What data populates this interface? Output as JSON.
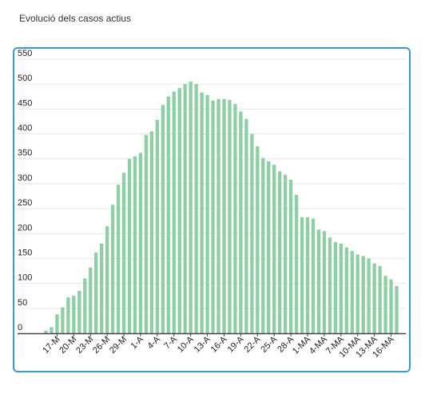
{
  "title": "Evolució dels casos actius",
  "colors": {
    "bar": "#8fcfa5",
    "grid": "#e6e6e6",
    "axis": "#444444",
    "frame": "#3d96d8"
  },
  "chart_data": {
    "type": "bar",
    "title": "Evolució dels casos actius",
    "xlabel": "",
    "ylabel": "",
    "ylim": [
      0,
      550
    ],
    "y_ticks": [
      0,
      50,
      100,
      150,
      200,
      250,
      300,
      350,
      400,
      450,
      500,
      550
    ],
    "grid": true,
    "legend": "none",
    "x_tick_labels": [
      "17-M",
      "20-M",
      "23-M",
      "26-M",
      "29-M",
      "1-A",
      "4-A",
      "7-A",
      "10-A",
      "13-A",
      "16-A",
      "19-A",
      "22-A",
      "25-A",
      "28-A",
      "1-MA",
      "4-MA",
      "7-MA",
      "10-MA",
      "13-MA",
      "16-MA"
    ],
    "x_tick_every": 3,
    "x_tick_first_index": 2,
    "values": [
      5,
      12,
      38,
      52,
      72,
      75,
      85,
      110,
      132,
      162,
      180,
      215,
      258,
      298,
      322,
      350,
      355,
      362,
      398,
      405,
      428,
      458,
      475,
      485,
      492,
      500,
      505,
      500,
      483,
      478,
      467,
      470,
      470,
      468,
      460,
      445,
      430,
      400,
      375,
      352,
      345,
      338,
      325,
      318,
      308,
      278,
      233,
      233,
      230,
      208,
      205,
      192,
      183,
      180,
      172,
      165,
      158,
      155,
      150,
      140,
      135,
      115,
      108,
      95
    ]
  }
}
